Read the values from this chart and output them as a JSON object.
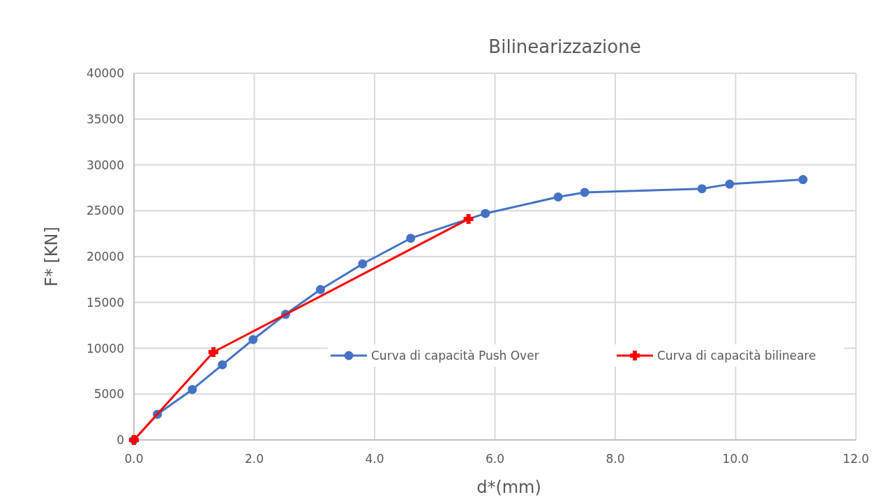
{
  "chart_data": {
    "type": "line",
    "title": "Bilinearizzazione",
    "xlabel": "d*(mm)",
    "ylabel": "F*  [KN]",
    "xlim": [
      0,
      12
    ],
    "xticks": [
      {
        "value": 0,
        "label": "0.0"
      },
      {
        "value": 2,
        "label": "2.0"
      },
      {
        "value": 4,
        "label": "4.0"
      },
      {
        "value": 6,
        "label": "6.0"
      },
      {
        "value": 8,
        "label": "8.0"
      },
      {
        "value": 10,
        "label": "10.0"
      },
      {
        "value": 12,
        "label": "12.0"
      }
    ],
    "ylim": [
      0,
      40000
    ],
    "yticks": [
      0,
      5000,
      10000,
      15000,
      20000,
      25000,
      30000,
      35000,
      40000
    ],
    "grid": true,
    "legend": "right",
    "series": [
      {
        "name": "Curva di capacità Push Over",
        "color": "#4472c4",
        "marker": "circle",
        "x": [
          0,
          0.39,
          0.97,
          1.47,
          1.98,
          2.52,
          3.1,
          3.8,
          4.6,
          5.84,
          7.05,
          7.49,
          9.44,
          9.9,
          11.12
        ],
        "values": [
          0,
          2800,
          5500,
          8200,
          10950,
          13700,
          16400,
          19200,
          22000,
          24700,
          26500,
          27000,
          27400,
          27900,
          28400
        ]
      },
      {
        "name": "Curva di capacità bilineare",
        "color": "#ff0000",
        "marker": "cross",
        "x": [
          0,
          1.32,
          5.56
        ],
        "values": [
          0,
          9580,
          24100
        ]
      }
    ]
  }
}
